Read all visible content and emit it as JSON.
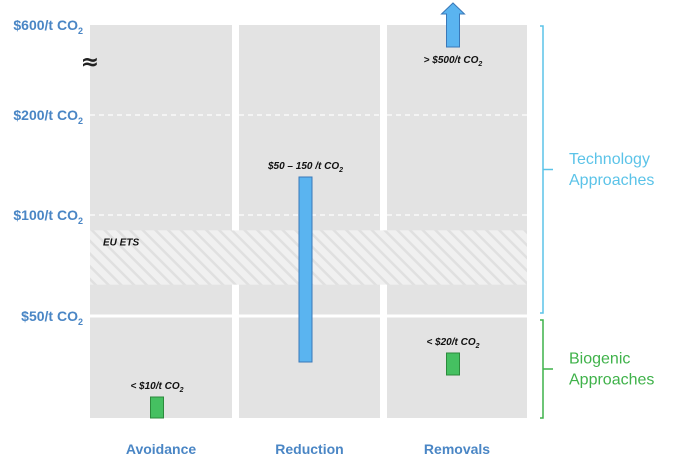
{
  "chart_data": {
    "type": "bar",
    "title": "",
    "xlabel": "",
    "ylabel": "",
    "categories": [
      "Avoidance",
      "Reduction",
      "Removals"
    ],
    "y_scale": "broken-log",
    "y_ticks": [
      {
        "value": 50,
        "label": "$50/t CO",
        "sub": "2"
      },
      {
        "value": 100,
        "label": "$100/t CO",
        "sub": "2"
      },
      {
        "value": 200,
        "label": "$200/t CO",
        "sub": "2"
      },
      {
        "value": 600,
        "label": "$600/t CO",
        "sub": "2"
      }
    ],
    "axis_break_symbol": "≈",
    "ranges": [
      {
        "category": "Avoidance",
        "low": 5,
        "high": 10,
        "label": "< $10/t CO",
        "sub": "2",
        "color": "#45c061",
        "approach": "Biogenic"
      },
      {
        "category": "Reduction",
        "low": 50,
        "high": 150,
        "label": "$50 – 150 /t CO",
        "sub": "2",
        "color": "#5ab4f0",
        "approach": "Technology"
      },
      {
        "category": "Removals",
        "low": 500,
        "high": 600,
        "label": "> $500/t CO",
        "sub": "2",
        "color": "#5ab4f0",
        "approach": "Technology",
        "open_upper": true
      },
      {
        "category": "Removals",
        "low": 15,
        "high": 20,
        "label": "< $20/t CO",
        "sub": "2",
        "color": "#45c061",
        "approach": "Biogenic"
      }
    ],
    "band": {
      "label": "EU ETS",
      "low": 62,
      "high": 90
    },
    "groups": [
      {
        "label": "Technology Approaches",
        "lines": [
          "Technology",
          "Approaches"
        ],
        "color": "#5bc3e8"
      },
      {
        "label": "Biogenic Approaches",
        "lines": [
          "Biogenic",
          "Approaches"
        ],
        "color": "#3fb24a"
      }
    ],
    "grid": true,
    "legend": "none"
  }
}
